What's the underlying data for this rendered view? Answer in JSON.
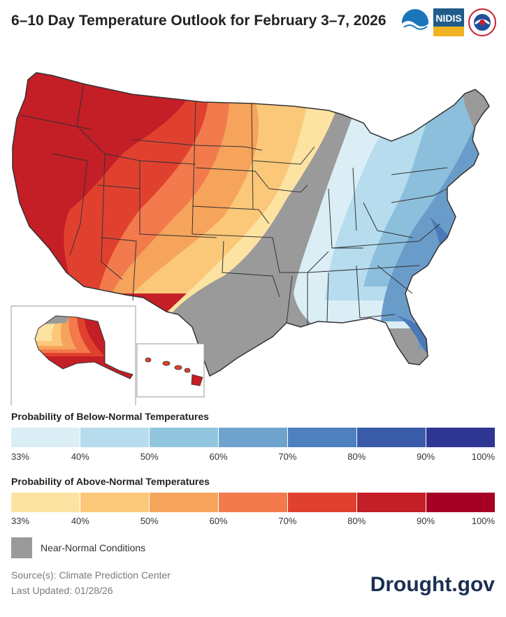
{
  "header": {
    "title": "6–10 Day Temperature Outlook for February 3–7, 2026",
    "logo_noaa": "NOAA",
    "logo_nidis": "NIDIS",
    "logo_nws": "NWS"
  },
  "map": {
    "categories": {
      "above_90": "#c41e26",
      "above_80": "#e0412f",
      "above_70": "#f27a4c",
      "above_60": "#f6a35c",
      "above_50": "#fbc87a",
      "above_40": "#fde3a2",
      "near_normal": "#9a9a9a",
      "below_40": "#dbeef6",
      "below_50": "#b6dced",
      "below_60": "#8cbfdc",
      "below_70": "#6a9cc9",
      "below_80": "#4a79b8"
    }
  },
  "legend": {
    "below": {
      "title": "Probability of Below-Normal Temperatures",
      "colors": [
        "#dbeef6",
        "#b6dced",
        "#92c6df",
        "#6fa3cd",
        "#4e7fbf",
        "#3a5ca8",
        "#2e3592"
      ],
      "ticks": [
        "33%",
        "40%",
        "50%",
        "60%",
        "70%",
        "80%",
        "90%",
        "100%"
      ]
    },
    "above": {
      "title": "Probability of Above-Normal Temperatures",
      "colors": [
        "#fde3a2",
        "#fbc87a",
        "#f6a35c",
        "#f27a4c",
        "#e0412f",
        "#c41e26",
        "#a50024"
      ],
      "ticks": [
        "33%",
        "40%",
        "50%",
        "60%",
        "70%",
        "80%",
        "90%",
        "100%"
      ]
    },
    "near_normal": "Near-Normal Conditions"
  },
  "footer": {
    "source": "Source(s): Climate Prediction Center",
    "updated": "Last Updated: 01/28/26",
    "brand": "Drought.gov"
  }
}
